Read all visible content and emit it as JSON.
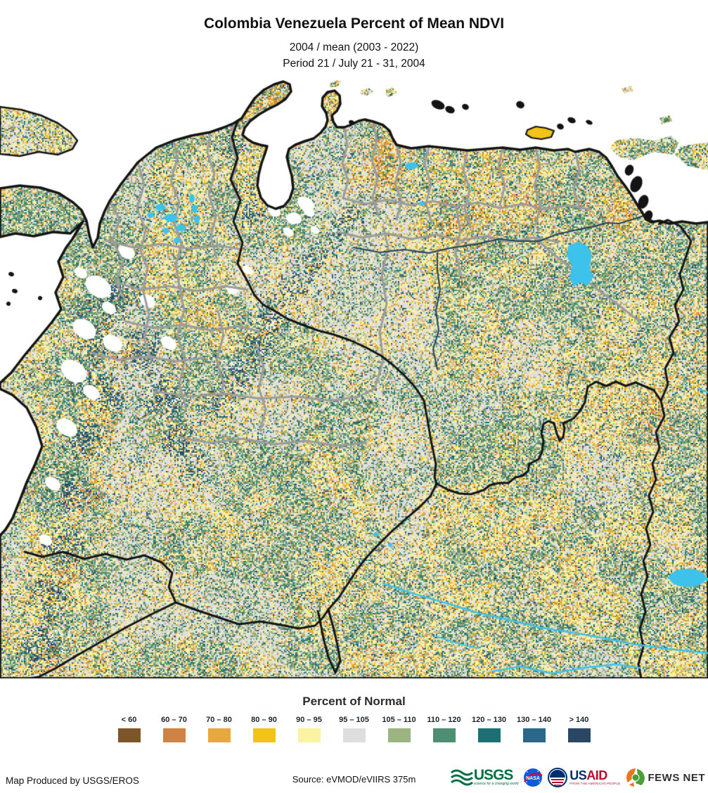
{
  "header": {
    "title": "Colombia Venezuela Percent of Mean NDVI",
    "subtitle1": "2004 / mean (2003 - 2022)",
    "subtitle2": "Period 21 / July 21 - 31, 2004"
  },
  "legend": {
    "title": "Percent of Normal",
    "classes": [
      {
        "label": "< 60",
        "color": "#7C5529"
      },
      {
        "label": "60 – 70",
        "color": "#CE8244"
      },
      {
        "label": "70 – 80",
        "color": "#E7A83E"
      },
      {
        "label": "80 – 90",
        "color": "#F2C318"
      },
      {
        "label": "90 – 95",
        "color": "#FAF3A2"
      },
      {
        "label": "95 – 105",
        "color": "#DEDEDE"
      },
      {
        "label": "105 – 110",
        "color": "#9BB481"
      },
      {
        "label": "110 – 120",
        "color": "#4E8E72"
      },
      {
        "label": "120 – 130",
        "color": "#1E6F74"
      },
      {
        "label": "130 – 140",
        "color": "#2A6788"
      },
      {
        "label": "> 140",
        "color": "#2B4564"
      }
    ]
  },
  "footer": {
    "produced_by": "Map Produced by USGS/EROS",
    "source": "Source: eVMOD/eVIIRS 375m",
    "logos": [
      {
        "name": "usgs",
        "label": "USGS",
        "tagline": "science for a changing world",
        "color": "#006F41"
      },
      {
        "name": "nasa",
        "label": "NASA",
        "color": "#105BD8",
        "accent": "#E4002B"
      },
      {
        "name": "usaid",
        "label_blue": "US",
        "label_red": "AID",
        "tagline": "FROM THE AMERICAN PEOPLE",
        "color_blue": "#002F6C",
        "color_red": "#BA0C2F"
      },
      {
        "name": "fews-net",
        "label": "FEWS NET",
        "color_orange": "#E87722",
        "color_green": "#4C9F38"
      }
    ]
  },
  "map": {
    "ocean_color": "#ffffff",
    "coast_color": "#141414",
    "country_border_color": "#141414",
    "admin_border_color": "#9B9B9B",
    "water_color": "#3DC3EB",
    "river_dark_color": "#23425F",
    "palette": {
      "brown": "#7C5529",
      "orange": "#CE8244",
      "gold": "#E7A83E",
      "yellow": "#F2C318",
      "pale": "#FAF3A2",
      "gray": "#DEDEDE",
      "sage": "#9BB481",
      "green": "#4E8E72",
      "teal": "#1E6F74",
      "steel": "#2A6788",
      "navy": "#2B4564",
      "cyan": "#3DC3EB",
      "white": "#FFFFFF"
    }
  }
}
